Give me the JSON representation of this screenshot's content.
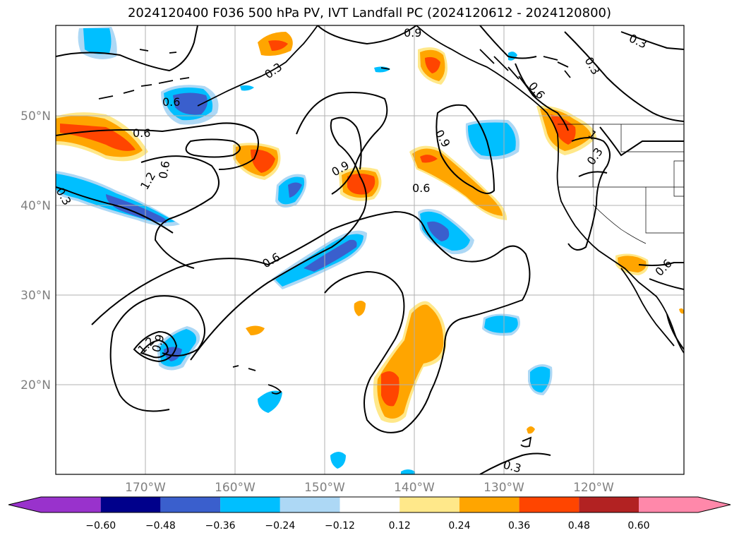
{
  "title": "2024120400 F036 500 hPa PV, IVT Landfall PC (2024120612 - 2024120800)",
  "map": {
    "lon_range": [
      -180,
      -110
    ],
    "lat_range": [
      10,
      60
    ],
    "gridlines": true,
    "lat_ticks": [
      "20°N",
      "30°N",
      "40°N",
      "50°N"
    ],
    "lon_ticks": [
      "170°W",
      "160°W",
      "150°W",
      "140°W",
      "130°W",
      "120°W"
    ],
    "contour_labels": [
      "0.9",
      "0.3",
      "0.3",
      "0.6",
      "0.3",
      "0.6",
      "0.6",
      "0.6",
      "0.9",
      "1.2",
      "0.9",
      "0.3",
      "0.6",
      "0.3",
      "0.6",
      "0.3",
      "1",
      "1.2",
      "0.9",
      "0.6",
      "0.3"
    ]
  },
  "colorbar": {
    "extend": "both",
    "ticks": [
      "−0.60",
      "−0.48",
      "−0.36",
      "−0.24",
      "−0.12",
      "0.12",
      "0.24",
      "0.36",
      "0.48",
      "0.60"
    ],
    "colors": [
      "#9932cc",
      "#00008b",
      "#3a5fcd",
      "#00bfff",
      "#add8f5",
      "#ffffff",
      "#ffe88a",
      "#ffa500",
      "#ff4500",
      "#b22222",
      "#ff88aa"
    ]
  }
}
